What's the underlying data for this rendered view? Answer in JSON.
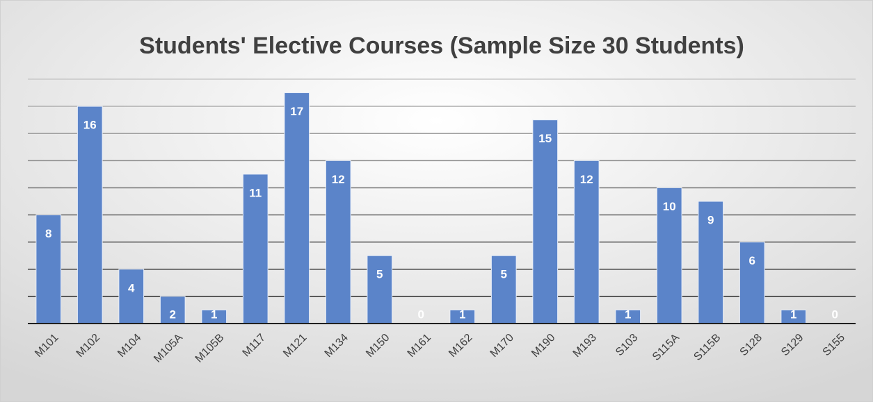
{
  "chart_data": {
    "type": "bar",
    "title": "Students' Elective Courses (Sample Size 30 Students)",
    "categories": [
      "M101",
      "M102",
      "M104",
      "M105A",
      "M105B",
      "M117",
      "M121",
      "M134",
      "M150",
      "M161",
      "M162",
      "M170",
      "M190",
      "M193",
      "S103",
      "S115A",
      "S115B",
      "S128",
      "S129",
      "S155"
    ],
    "values": [
      8,
      16,
      4,
      2,
      1,
      11,
      17,
      12,
      5,
      0,
      1,
      5,
      15,
      12,
      1,
      10,
      9,
      6,
      1,
      0
    ],
    "color": "#5b84c9",
    "ylim": [
      0,
      18
    ],
    "yticks": [
      0,
      2,
      4,
      6,
      8,
      10,
      12,
      14,
      16,
      18
    ],
    "grid": true
  }
}
